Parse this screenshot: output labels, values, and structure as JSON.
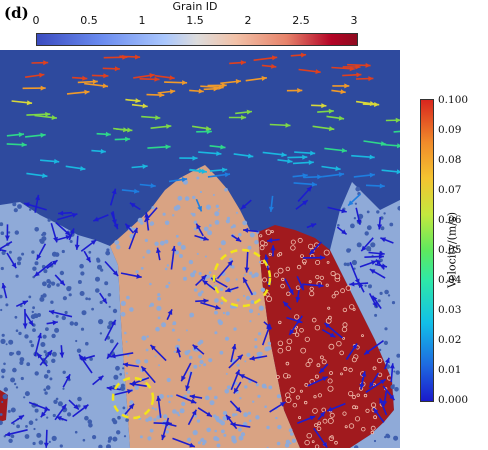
{
  "panel_label": "(d)",
  "grain_colorbar": {
    "title": "Grain ID",
    "ticks": [
      "0",
      "0.5",
      "1",
      "1.5",
      "2",
      "2.5",
      "3"
    ]
  },
  "velocity_colorbar": {
    "title": "Velocity/(m/s)",
    "ticks": [
      "0.100",
      "0.09",
      "0.08",
      "0.07",
      "0.06",
      "0.05",
      "0.04",
      "0.03",
      "0.02",
      "0.01",
      "0.000"
    ]
  },
  "colors": {
    "liquid": "#2e4a9e",
    "grain_blue": "#8faad8",
    "grain_tan": "#d9a383",
    "grain_red": "#a11a1e",
    "highlight_circle": "#f2e41a",
    "vector_blue": "#1c1ccf"
  }
}
